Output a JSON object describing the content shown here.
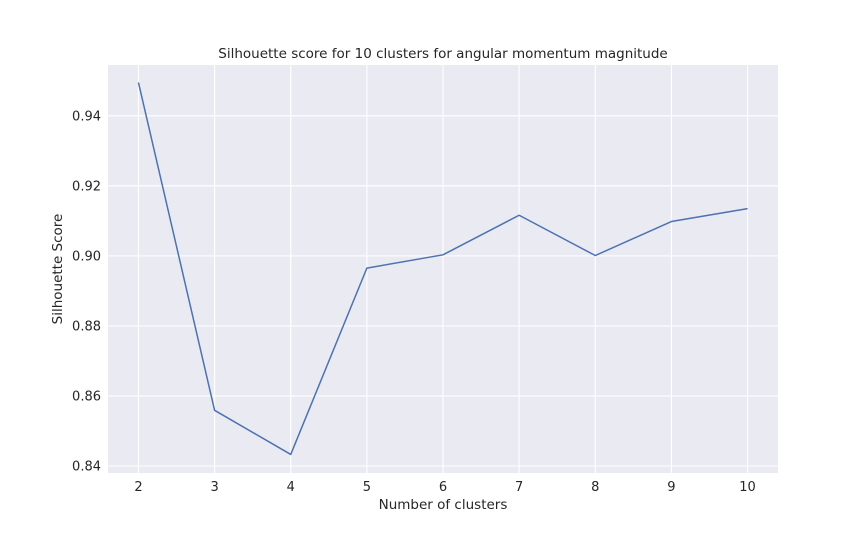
{
  "chart_data": {
    "type": "line",
    "title": "Silhouette score for 10 clusters for angular momentum magnitude",
    "xlabel": "Number of clusters",
    "ylabel": "Silhouette Score",
    "x": [
      2,
      3,
      4,
      5,
      6,
      7,
      8,
      9,
      10
    ],
    "series": [
      {
        "values": [
          0.9495,
          0.8559,
          0.8433,
          0.8965,
          0.9003,
          0.9116,
          0.9001,
          0.9098,
          0.9135
        ],
        "color": "#4c72b0"
      }
    ],
    "xticks": [
      "2",
      "3",
      "4",
      "5",
      "6",
      "7",
      "8",
      "9",
      "10"
    ],
    "yticks": [
      "0.84",
      "0.86",
      "0.88",
      "0.90",
      "0.92",
      "0.94"
    ],
    "ytick_values": [
      0.84,
      0.86,
      0.88,
      0.9,
      0.92,
      0.94
    ],
    "xlim": [
      1.6,
      10.4
    ],
    "ylim": [
      0.838,
      0.9545
    ],
    "grid": true,
    "style": {
      "background": "#eaeaf2",
      "grid_color": "#ffffff"
    }
  }
}
